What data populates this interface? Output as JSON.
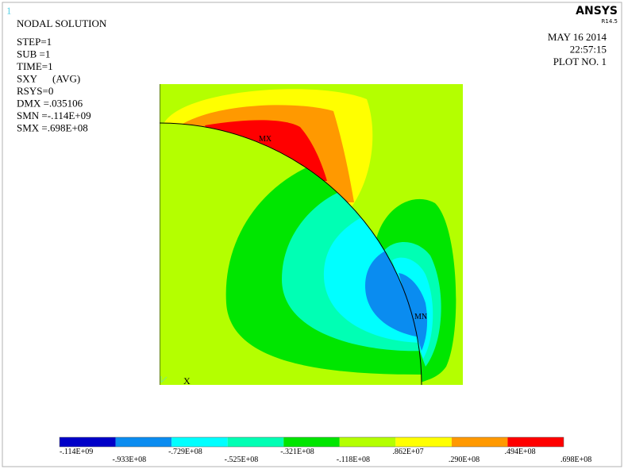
{
  "window_number": "1",
  "header": {
    "title": "NODAL SOLUTION",
    "info": [
      "STEP=1",
      "SUB =1",
      "TIME=1",
      "SXY      (AVG)",
      "RSYS=0",
      "DMX =.035106",
      "SMN =-.114E+09",
      "SMX =.698E+08"
    ]
  },
  "brand": {
    "name": "ANSYS",
    "version": "R14.5"
  },
  "plot_info": [
    "MAY 16 2014",
    "22:57:15",
    "PLOT NO.   1"
  ],
  "markers": {
    "max": "MX",
    "min": "MN"
  },
  "triad": {
    "label": "X"
  },
  "legend": {
    "colors": [
      "#0000c8",
      "#0a8cf0",
      "#00ffff",
      "#00ffb4",
      "#00e600",
      "#b4ff00",
      "#ffff00",
      "#ff9900",
      "#ff0000"
    ],
    "labels": [
      "-.114E+09",
      "-.933E+08",
      "-.729E+08",
      "-.525E+08",
      "-.321E+08",
      "-.118E+08",
      ".862E+07",
      ".290E+08",
      ".494E+08",
      ".698E+08"
    ]
  }
}
